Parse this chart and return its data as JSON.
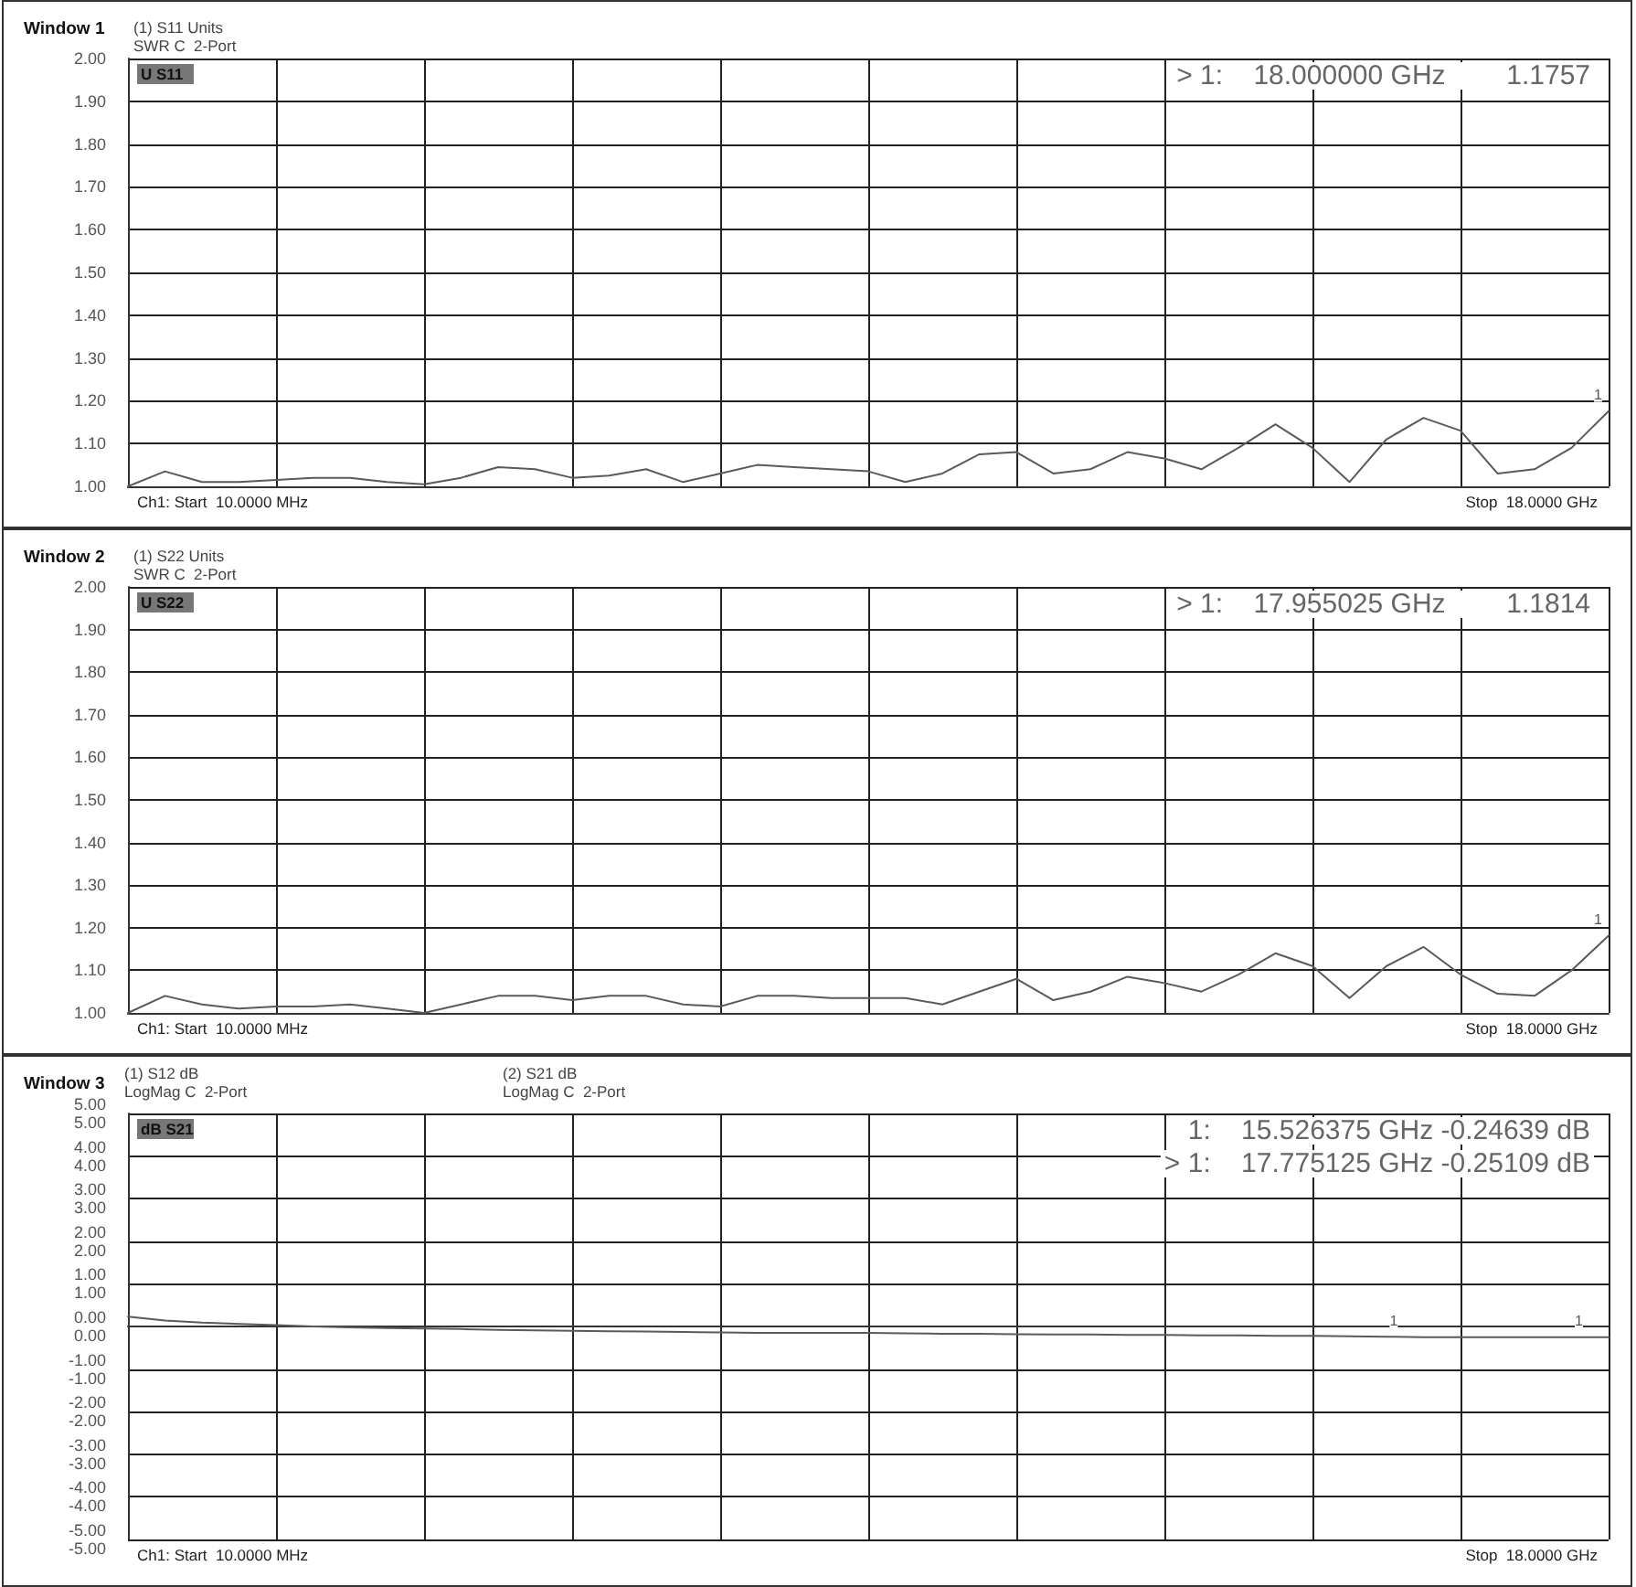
{
  "chart_data": [
    {
      "type": "line",
      "title": "Window 1",
      "subtitle": "(1) S11 Units\nSWR C  2-Port",
      "categories": [
        null,
        null,
        null,
        null,
        null,
        null,
        null,
        null,
        null,
        null,
        null,
        null,
        null,
        null,
        null,
        null,
        null,
        null,
        null,
        null,
        null,
        null,
        null,
        null,
        null,
        null,
        null,
        null,
        null,
        null,
        null,
        null,
        null,
        null,
        null,
        null,
        null,
        null,
        null,
        null,
        null
      ],
      "ylim": [
        1,
        2
      ],
      "yticks": [
        {
          "value": 1,
          "label": "1.00"
        },
        {
          "value": 1.1,
          "label": "1.10"
        },
        {
          "value": 1.2,
          "label": "1.20"
        },
        {
          "value": 1.3,
          "label": "1.30"
        },
        {
          "value": 1.4,
          "label": "1.40"
        },
        {
          "value": 1.5,
          "label": "1.50"
        },
        {
          "value": 1.6,
          "label": "1.60"
        },
        {
          "value": 1.7,
          "label": "1.70"
        },
        {
          "value": 1.8,
          "label": "1.80"
        },
        {
          "value": 1.9,
          "label": "1.90"
        },
        {
          "value": 2,
          "label": "2.00"
        }
      ],
      "grid": true,
      "marker": "none",
      "line_style": "solid",
      "series": [
        {
          "color": "#5a5a5a",
          "values": [
            1.0,
            1.035,
            1.01,
            1.01,
            1.015,
            1.02,
            1.02,
            1.01,
            1.005,
            1.02,
            1.045,
            1.04,
            1.02,
            1.025,
            1.04,
            1.01,
            1.03,
            1.05,
            1.045,
            1.04,
            1.035,
            1.01,
            1.03,
            1.075,
            1.08,
            1.03,
            1.04,
            1.08,
            1.065,
            1.04,
            1.09,
            1.145,
            1.09,
            1.01,
            1.11,
            1.16,
            1.13,
            1.03,
            1.04,
            1.09,
            1.1757
          ]
        }
      ],
      "annotations": [
        "U S11",
        "> 1:    18.000000 GHz        1.1757",
        "Ch1: Start  10.0000 MHz",
        "Stop  18.0000 GHz",
        "1"
      ]
    },
    {
      "type": "line",
      "title": "Window 2",
      "subtitle": "(1) S22 Units\nSWR C  2-Port",
      "categories": [
        null,
        null,
        null,
        null,
        null,
        null,
        null,
        null,
        null,
        null,
        null,
        null,
        null,
        null,
        null,
        null,
        null,
        null,
        null,
        null,
        null,
        null,
        null,
        null,
        null,
        null,
        null,
        null,
        null,
        null,
        null,
        null,
        null,
        null,
        null,
        null,
        null,
        null,
        null,
        null,
        null
      ],
      "ylim": [
        1,
        2
      ],
      "yticks": [
        {
          "value": 1,
          "label": "1.00"
        },
        {
          "value": 1.1,
          "label": "1.10"
        },
        {
          "value": 1.2,
          "label": "1.20"
        },
        {
          "value": 1.3,
          "label": "1.30"
        },
        {
          "value": 1.4,
          "label": "1.40"
        },
        {
          "value": 1.5,
          "label": "1.50"
        },
        {
          "value": 1.6,
          "label": "1.60"
        },
        {
          "value": 1.7,
          "label": "1.70"
        },
        {
          "value": 1.8,
          "label": "1.80"
        },
        {
          "value": 1.9,
          "label": "1.90"
        },
        {
          "value": 2,
          "label": "2.00"
        }
      ],
      "grid": true,
      "marker": "none",
      "line_style": "solid",
      "series": [
        {
          "color": "#5a5a5a",
          "values": [
            1.0,
            1.04,
            1.02,
            1.01,
            1.015,
            1.015,
            1.02,
            1.01,
            1.0,
            1.02,
            1.04,
            1.04,
            1.03,
            1.04,
            1.04,
            1.02,
            1.015,
            1.04,
            1.04,
            1.035,
            1.035,
            1.035,
            1.02,
            1.05,
            1.08,
            1.03,
            1.05,
            1.085,
            1.07,
            1.05,
            1.09,
            1.14,
            1.11,
            1.035,
            1.11,
            1.155,
            1.09,
            1.045,
            1.04,
            1.1,
            1.1814
          ]
        }
      ],
      "annotations": [
        "U S22",
        "> 1:    17.955025 GHz        1.1814",
        "Ch1: Start  10.0000 MHz",
        "Stop  18.0000 GHz",
        "1"
      ]
    },
    {
      "type": "line",
      "title": "Window 3",
      "categories": [
        null,
        null,
        null,
        null,
        null,
        null,
        null,
        null,
        null,
        null,
        null,
        null,
        null,
        null,
        null,
        null,
        null,
        null,
        null,
        null,
        null,
        null,
        null,
        null,
        null,
        null,
        null,
        null,
        null,
        null,
        null,
        null,
        null,
        null,
        null,
        null,
        null,
        null,
        null,
        null,
        null
      ],
      "ylim": [
        -5,
        5
      ],
      "yticks": [
        {
          "value": -5,
          "label": "-5.00"
        },
        {
          "value": -4,
          "label": "-4.00"
        },
        {
          "value": -3,
          "label": "-3.00"
        },
        {
          "value": -2,
          "label": "-2.00"
        },
        {
          "value": -1,
          "label": "-1.00"
        },
        {
          "value": 0,
          "label": "0.00"
        },
        {
          "value": 1,
          "label": "1.00"
        },
        {
          "value": 2,
          "label": "2.00"
        },
        {
          "value": 3,
          "label": "3.00"
        },
        {
          "value": 4,
          "label": "4.00"
        },
        {
          "value": 5,
          "label": "5.00"
        }
      ],
      "grid": true,
      "marker": "none",
      "line_style": "solid",
      "series": [
        {
          "color": "#5a5a5a",
          "values": [
            0.23,
            0.14,
            0.09,
            0.06,
            0.03,
            0.0,
            -0.02,
            -0.04,
            -0.05,
            -0.06,
            -0.08,
            -0.09,
            -0.1,
            -0.11,
            -0.12,
            -0.13,
            -0.14,
            -0.15,
            -0.15,
            -0.15,
            -0.15,
            -0.16,
            -0.17,
            -0.17,
            -0.18,
            -0.19,
            -0.19,
            -0.2,
            -0.2,
            -0.21,
            -0.21,
            -0.22,
            -0.22,
            -0.23,
            -0.24,
            -0.25,
            -0.25,
            -0.25,
            -0.25,
            -0.25,
            -0.25
          ]
        }
      ],
      "annotations": [
        "(1) S12 dB\nLogMag C  2-Port",
        "(2) S21 dB\nLogMag C  2-Port",
        "dB S21",
        "1:    15.526375 GHz -0.24639 dB",
        "> 1:    17.775125 GHz -0.25109 dB",
        "Ch1: Start  10.0000 MHz",
        "Stop  18.0000 GHz",
        "1",
        "1"
      ]
    }
  ]
}
